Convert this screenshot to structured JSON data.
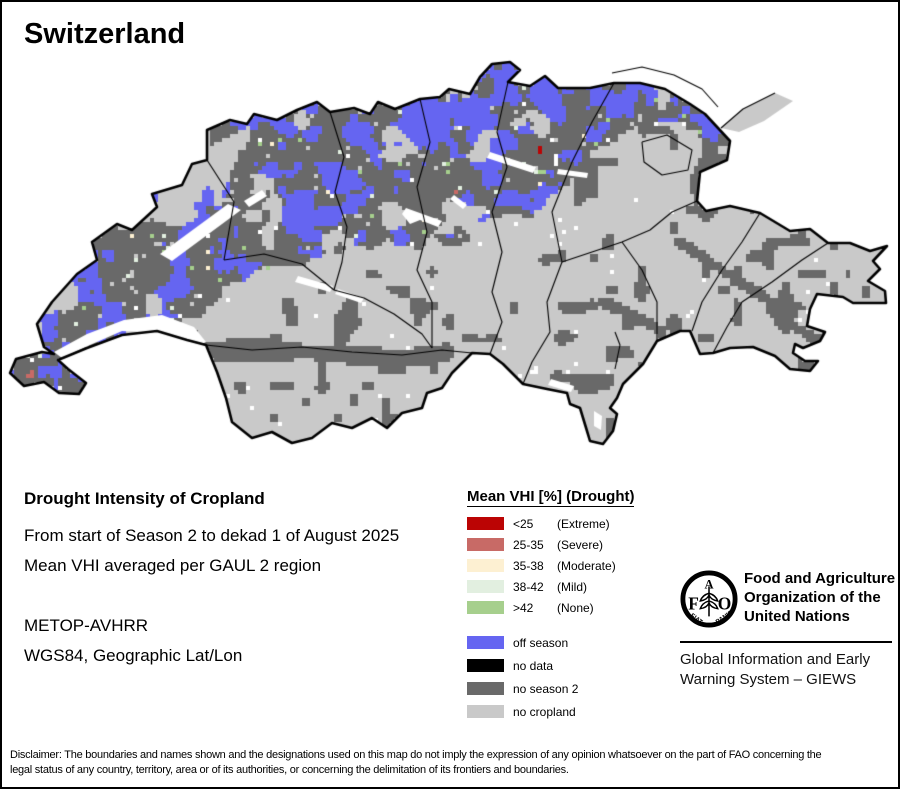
{
  "title": "Switzerland",
  "info": {
    "heading": "Drought Intensity of Cropland",
    "period": "From start of Season 2 to dekad 1 of August 2025",
    "method": "Mean VHI averaged per GAUL 2 region",
    "sensor": "METOP-AVHRR",
    "projection": "WGS84, Geographic Lat/Lon"
  },
  "legend": {
    "title": "Mean VHI [%] (Drought)",
    "drought_classes": [
      {
        "range": "<25",
        "qualifier": "(Extreme)",
        "color": "#bb0404"
      },
      {
        "range": "25-35",
        "qualifier": "(Severe)",
        "color": "#c86a66"
      },
      {
        "range": "35-38",
        "qualifier": "(Moderate)",
        "color": "#fdf0d2"
      },
      {
        "range": "38-42",
        "qualifier": "(Mild)",
        "color": "#e2efe0"
      },
      {
        "range": ">42",
        "qualifier": "(None)",
        "color": "#a6cf8d"
      }
    ],
    "coverage_classes": [
      {
        "label": "off season",
        "color": "#6565f1"
      },
      {
        "label": "no data",
        "color": "#000000"
      },
      {
        "label": "no season 2",
        "color": "#696969"
      },
      {
        "label": "no cropland",
        "color": "#c9c9c9"
      }
    ]
  },
  "map": {
    "description": "Pixelated drought raster map of Switzerland with GAUL 2 region boundaries",
    "lake_color": "#ffffff",
    "boundary_color": "#000000"
  },
  "footer": {
    "fao_name_lines": [
      "Food and Agriculture",
      "Organization of the",
      "United Nations"
    ],
    "giews_lines": [
      "Global Information and Early",
      "Warning System – GIEWS"
    ],
    "logo": {
      "letters": [
        "F",
        "A",
        "O"
      ],
      "motto_left": "FIAT",
      "motto_right": "PANIS"
    }
  },
  "disclaimer": "Disclaimer: The boundaries and names shown and the designations used on this map do not imply the expression of any opinion whatsoever on the part of FAO concerning the legal status of any country, territory, area or of its authorities, or concerning the delimitation of its frontiers and boundaries."
}
